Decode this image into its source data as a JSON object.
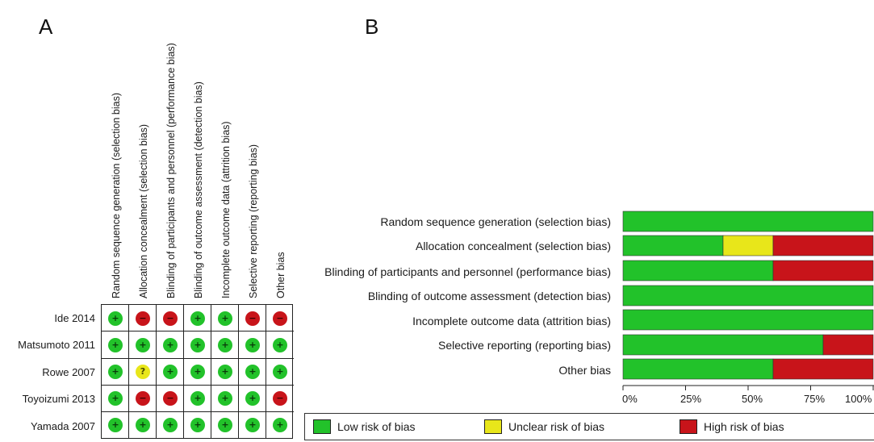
{
  "panels": {
    "a_letter": "A",
    "b_letter": "B"
  },
  "colors": {
    "low": "#22c22a",
    "unclear": "#e8e61a",
    "high": "#c8141a"
  },
  "chart_data": [
    {
      "type": "table",
      "columns": [
        "Random sequence generation (selection bias)",
        "Allocation concealment (selection bias)",
        "Blinding of participants and personnel (performance bias)",
        "Blinding of outcome assessment (detection bias)",
        "Incomplete outcome data (attrition bias)",
        "Selective reporting (reporting bias)",
        "Other bias"
      ],
      "rows": [
        {
          "study": "Ide 2014",
          "judgements": [
            "+",
            "-",
            "-",
            "+",
            "+",
            "-",
            "-"
          ]
        },
        {
          "study": "Matsumoto 2011",
          "judgements": [
            "+",
            "+",
            "+",
            "+",
            "+",
            "+",
            "+"
          ]
        },
        {
          "study": "Rowe 2007",
          "judgements": [
            "+",
            "?",
            "+",
            "+",
            "+",
            "+",
            "+"
          ]
        },
        {
          "study": "Toyoizumi 2013",
          "judgements": [
            "+",
            "-",
            "-",
            "+",
            "+",
            "+",
            "-"
          ]
        },
        {
          "study": "Yamada 2007",
          "judgements": [
            "+",
            "+",
            "+",
            "+",
            "+",
            "+",
            "+"
          ]
        }
      ]
    },
    {
      "type": "bar",
      "stacked": true,
      "orientation": "horizontal",
      "categories": [
        "Random sequence generation (selection bias)",
        "Allocation concealment (selection bias)",
        "Blinding of participants and personnel (performance bias)",
        "Blinding of outcome assessment (detection bias)",
        "Incomplete outcome data (attrition bias)",
        "Selective reporting (reporting bias)",
        "Other bias"
      ],
      "series": [
        {
          "name": "Low risk of bias",
          "values": [
            100,
            40,
            60,
            100,
            100,
            80,
            60
          ]
        },
        {
          "name": "Unclear risk of bias",
          "values": [
            0,
            20,
            0,
            0,
            0,
            0,
            0
          ]
        },
        {
          "name": "High risk of bias",
          "values": [
            0,
            40,
            40,
            0,
            0,
            20,
            40
          ]
        }
      ],
      "xlim": [
        0,
        100
      ],
      "xticks": [
        "0%",
        "25%",
        "50%",
        "75%",
        "100%"
      ],
      "legend_position": "bottom"
    }
  ]
}
